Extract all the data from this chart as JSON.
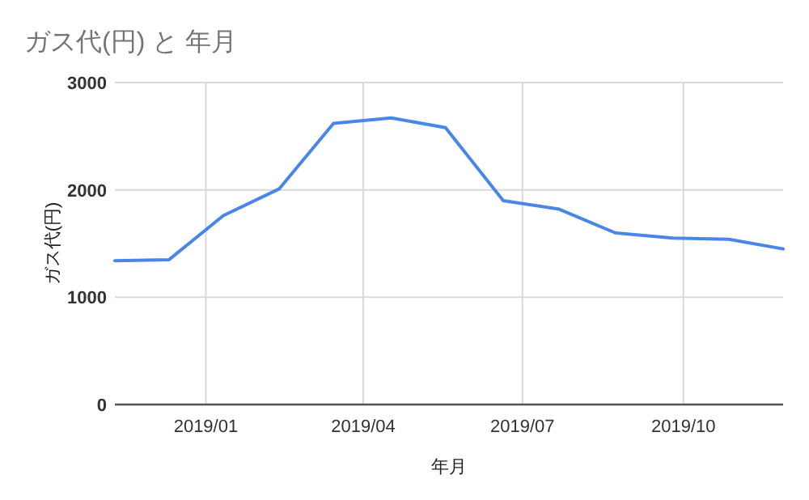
{
  "chart_data": {
    "type": "line",
    "title": "ガス代(円) と 年月",
    "xlabel": "年月",
    "ylabel": "ガス代(円)",
    "x": [
      "2018-11-10",
      "2018-12-11",
      "2019-01-11",
      "2019-02-12",
      "2019-03-15",
      "2019-04-17",
      "2019-05-18",
      "2019-06-20",
      "2019-07-22",
      "2019-08-23",
      "2019-09-25",
      "2019-10-27",
      "2019-11-27"
    ],
    "series": [
      {
        "color": "#4a86e8",
        "values": [
          1340,
          1350,
          1760,
          2010,
          2620,
          2670,
          2580,
          1900,
          1820,
          1600,
          1550,
          1540,
          1450
        ]
      }
    ],
    "xlim": [
      "2018-11-10",
      "2019-11-27"
    ],
    "xticks": [
      {
        "value": "2019-01-01",
        "label": "2019/01"
      },
      {
        "value": "2019-04-01",
        "label": "2019/04"
      },
      {
        "value": "2019-07-01",
        "label": "2019/07"
      },
      {
        "value": "2019-10-01",
        "label": "2019/10"
      }
    ],
    "ylim": [
      0,
      3000
    ],
    "yticks": [
      0,
      1000,
      2000,
      3000
    ],
    "grid": true,
    "marker": "none",
    "line_style": "solid"
  }
}
